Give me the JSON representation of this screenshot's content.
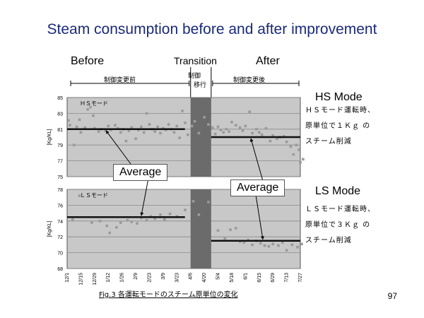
{
  "slide": {
    "title": "Steam consumption before and after improvement",
    "phase_before": "Before",
    "phase_transition": "Transition",
    "phase_after": "After",
    "bracket_before": "制御変更前",
    "bracket_transition_1": "制御",
    "bracket_transition_2": "移行",
    "bracket_after": "制御変更後",
    "hs_mode_label": "HS Mode",
    "hs_note_lines": [
      "ＨＳモード運転時、",
      "原単位で１Ｋｇ の",
      "スチーム削減"
    ],
    "ls_mode_label": "LS Mode",
    "ls_note_lines": [
      "ＬＳモード運転時、",
      "原単位で３Ｋｇ の",
      "スチーム削減"
    ],
    "avg_label_1": "Average",
    "avg_label_2": "Average",
    "fig_caption": "Fig.3 各運転モードのスチーム原単位の変化",
    "page_number": "97"
  },
  "chart_data": [
    {
      "type": "scatter",
      "panel_label": "ＨＳモード",
      "ylabel": "[Kg/KL]",
      "ylim": [
        75,
        85
      ],
      "yticks": [
        "85",
        "83",
        "81",
        "79",
        "77",
        "75"
      ],
      "x_categories": [
        "12/1",
        "12/15",
        "12/29",
        "1/12",
        "1/26",
        "2/9",
        "2/23",
        "3/9",
        "3/23",
        "4/6",
        "4/20",
        "5/4",
        "5/18",
        "6/1",
        "6/15",
        "6/29",
        "7/13",
        "7/27"
      ],
      "transition_range": [
        9.0,
        10.5
      ],
      "average_before": 81.0,
      "average_after": 80.0,
      "points": [
        [
          0.1,
          82.1
        ],
        [
          0.2,
          81.5
        ],
        [
          0.5,
          79.0
        ],
        [
          0.7,
          81.3
        ],
        [
          0.9,
          82.2
        ],
        [
          1.0,
          80.6
        ],
        [
          1.3,
          81.2
        ],
        [
          1.5,
          83.5
        ],
        [
          1.7,
          83.8
        ],
        [
          1.9,
          82.7
        ],
        [
          2.0,
          81.1
        ],
        [
          2.3,
          80.7
        ],
        [
          2.5,
          81.0
        ],
        [
          2.8,
          80.8
        ],
        [
          3.0,
          81.4
        ],
        [
          3.2,
          80.9
        ],
        [
          3.5,
          81.5
        ],
        [
          3.7,
          81.1
        ],
        [
          3.9,
          80.6
        ],
        [
          4.1,
          81.0
        ],
        [
          4.3,
          79.5
        ],
        [
          4.5,
          80.8
        ],
        [
          4.7,
          81.2
        ],
        [
          5.0,
          79.8
        ],
        [
          5.2,
          80.9
        ],
        [
          5.4,
          81.3
        ],
        [
          5.6,
          80.6
        ],
        [
          5.8,
          83.0
        ],
        [
          6.0,
          81.6
        ],
        [
          6.2,
          81.0
        ],
        [
          6.4,
          80.7
        ],
        [
          6.6,
          81.3
        ],
        [
          6.8,
          80.5
        ],
        [
          7.0,
          81.1
        ],
        [
          7.2,
          80.9
        ],
        [
          7.4,
          81.6
        ],
        [
          7.6,
          81.0
        ],
        [
          7.8,
          80.6
        ],
        [
          8.0,
          81.4
        ],
        [
          8.2,
          79.9
        ],
        [
          8.4,
          83.3
        ],
        [
          8.6,
          81.8
        ],
        [
          8.8,
          80.3
        ],
        [
          9.1,
          81.4
        ],
        [
          9.3,
          82.0
        ],
        [
          9.6,
          80.5
        ],
        [
          10.0,
          82.5
        ],
        [
          10.3,
          81.6
        ],
        [
          10.6,
          81.2
        ],
        [
          10.8,
          80.4
        ],
        [
          11.0,
          81.3
        ],
        [
          11.2,
          80.9
        ],
        [
          11.4,
          80.6
        ],
        [
          11.6,
          81.0
        ],
        [
          11.8,
          80.7
        ],
        [
          12.0,
          81.9
        ],
        [
          12.3,
          81.5
        ],
        [
          12.6,
          81.2
        ],
        [
          12.8,
          80.8
        ],
        [
          13.0,
          81.4
        ],
        [
          13.3,
          83.2
        ],
        [
          13.5,
          80.5
        ],
        [
          13.8,
          81.0
        ],
        [
          14.0,
          80.6
        ],
        [
          14.2,
          80.3
        ],
        [
          14.5,
          81.1
        ],
        [
          14.8,
          79.5
        ],
        [
          15.0,
          80.2
        ],
        [
          15.3,
          79.8
        ],
        [
          15.5,
          80.0
        ],
        [
          15.8,
          80.1
        ],
        [
          16.0,
          79.4
        ],
        [
          16.3,
          78.8
        ],
        [
          16.5,
          77.8
        ],
        [
          16.7,
          79.0
        ],
        [
          16.9,
          78.4
        ],
        [
          17.0,
          76.8
        ],
        [
          17.2,
          77.2
        ]
      ]
    },
    {
      "type": "scatter",
      "panel_label": "ＬＳモード",
      "ylabel": "[Kg/KL]",
      "ylim": [
        68,
        78
      ],
      "yticks": [
        "78",
        "76",
        "74",
        "72",
        "70",
        "68"
      ],
      "x_categories": [
        "12/1",
        "12/15",
        "12/29",
        "1/12",
        "1/26",
        "2/9",
        "2/23",
        "3/9",
        "3/23",
        "4/6",
        "4/20",
        "5/4",
        "5/18",
        "6/1",
        "6/15",
        "6/29",
        "7/13",
        "7/27"
      ],
      "transition_range": [
        9.0,
        10.5
      ],
      "average_before": 74.5,
      "average_after": 71.5,
      "points": [
        [
          0.4,
          74.2
        ],
        [
          0.9,
          77.2
        ],
        [
          1.8,
          73.8
        ],
        [
          2.4,
          74.0
        ],
        [
          2.9,
          73.4
        ],
        [
          3.1,
          72.5
        ],
        [
          3.6,
          73.2
        ],
        [
          3.9,
          73.8
        ],
        [
          4.4,
          74.1
        ],
        [
          4.7,
          73.9
        ],
        [
          5.1,
          73.7
        ],
        [
          5.4,
          74.4
        ],
        [
          5.8,
          74.1
        ],
        [
          6.1,
          74.6
        ],
        [
          6.4,
          74.3
        ],
        [
          6.8,
          74.8
        ],
        [
          7.1,
          74.2
        ],
        [
          7.5,
          74.9
        ],
        [
          8.0,
          74.6
        ],
        [
          8.6,
          75.4
        ],
        [
          9.2,
          76.5
        ],
        [
          9.6,
          74.8
        ],
        [
          10.3,
          76.4
        ],
        [
          11.0,
          72.8
        ],
        [
          11.5,
          71.8
        ],
        [
          11.9,
          72.9
        ],
        [
          12.3,
          73.1
        ],
        [
          12.6,
          71.4
        ],
        [
          12.9,
          71.3
        ],
        [
          13.2,
          71.6
        ],
        [
          13.5,
          71.0
        ],
        [
          13.8,
          71.5
        ],
        [
          14.1,
          71.2
        ],
        [
          14.4,
          70.9
        ],
        [
          14.7,
          70.8
        ],
        [
          15.0,
          71.1
        ],
        [
          15.4,
          70.9
        ],
        [
          15.7,
          71.3
        ],
        [
          16.0,
          70.3
        ],
        [
          16.4,
          71.0
        ],
        [
          16.8,
          70.7
        ],
        [
          17.1,
          71.1
        ]
      ]
    }
  ]
}
